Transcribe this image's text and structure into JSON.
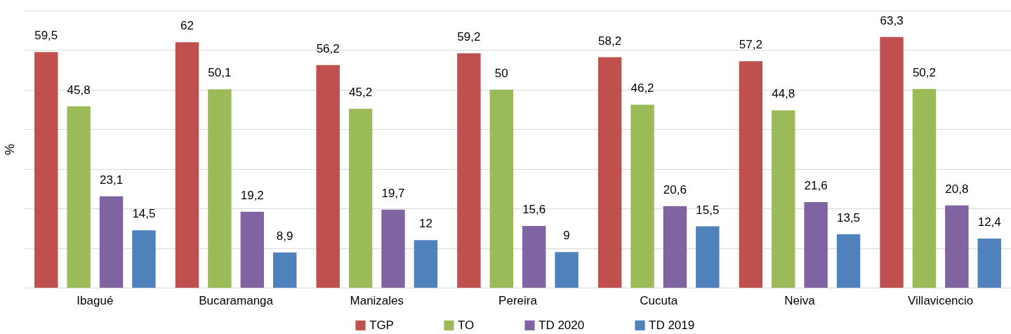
{
  "chart_data": {
    "type": "bar",
    "ylabel": "%",
    "categories": [
      "Ibagué",
      "Bucaramanga",
      "Manizales",
      "Pereira",
      "Cucuta",
      "Neiva",
      "Villavicencio"
    ],
    "series": [
      {
        "name": "TGP",
        "color": "#c0504d",
        "values": [
          59.5,
          62,
          56.2,
          59.2,
          58.2,
          57.2,
          63.3
        ],
        "value_labels": [
          "59,5",
          "62",
          "56,2",
          "59,2",
          "58,2",
          "57,2",
          "63,3"
        ]
      },
      {
        "name": "TO",
        "color": "#9bbb59",
        "values": [
          45.8,
          50.1,
          45.2,
          50,
          46.2,
          44.8,
          50.2
        ],
        "value_labels": [
          "45,8",
          "50,1",
          "45,2",
          "50",
          "46,2",
          "44,8",
          "50,2"
        ]
      },
      {
        "name": "TD 2020",
        "color": "#8064a2",
        "values": [
          23.1,
          19.2,
          19.7,
          15.6,
          20.6,
          21.6,
          20.8
        ],
        "value_labels": [
          "23,1",
          "19,2",
          "19,7",
          "15,6",
          "20,6",
          "21,6",
          "20,8"
        ]
      },
      {
        "name": "TD 2019",
        "color": "#4f81bd",
        "values": [
          14.5,
          8.9,
          12,
          9,
          15.5,
          13.5,
          12.4
        ],
        "value_labels": [
          "14,5",
          "8,9",
          "12",
          "9",
          "15,5",
          "13,5",
          "12,4"
        ]
      }
    ],
    "ylim": [
      0,
      70
    ],
    "yticks": [
      0,
      10,
      20,
      30,
      40,
      50,
      60,
      70
    ],
    "tick_labels": "x",
    "grid": "y",
    "legend": "bottom"
  }
}
